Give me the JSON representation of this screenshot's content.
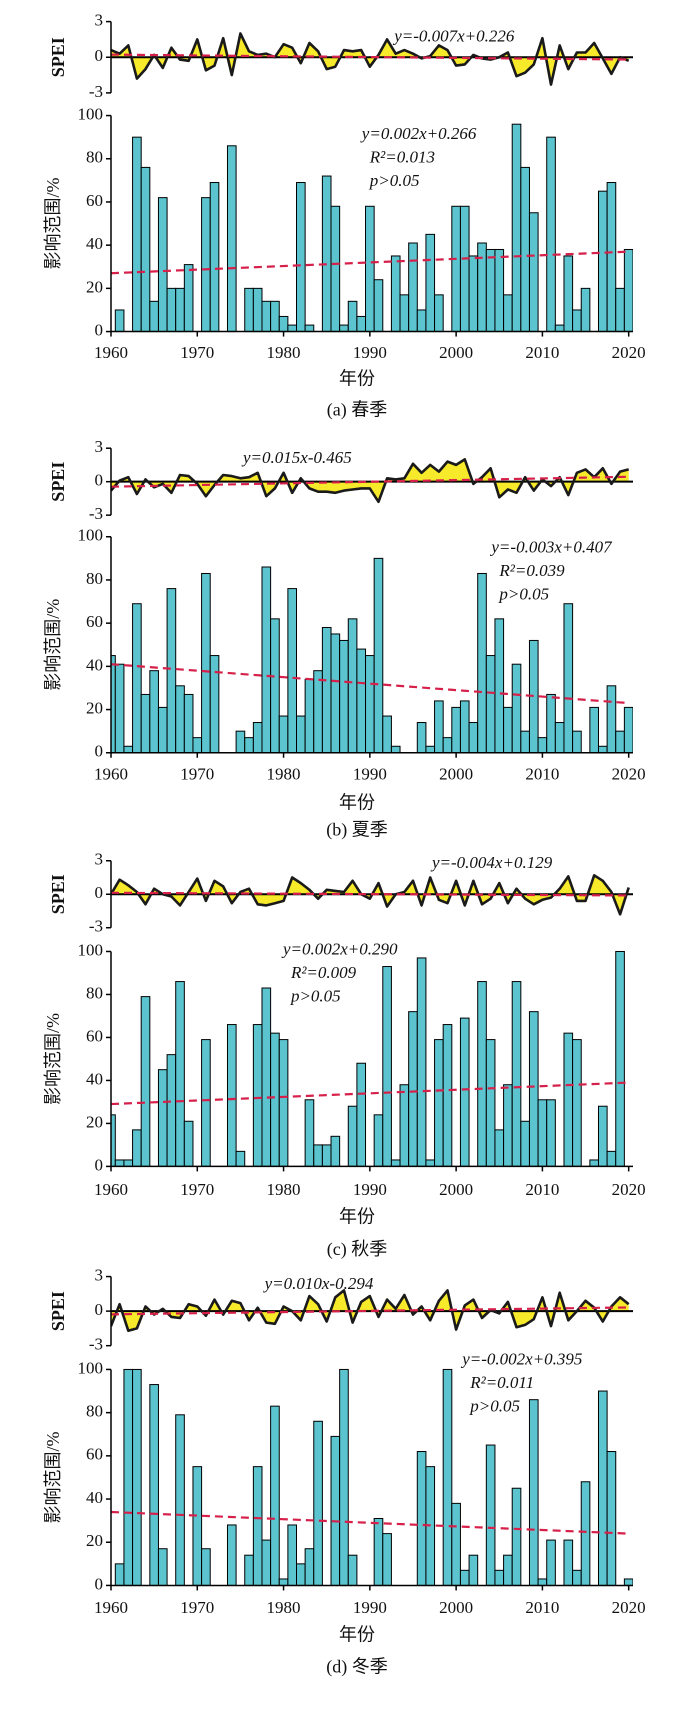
{
  "chart_data": [
    {
      "type": "bar",
      "x": [
        1960,
        1961,
        1962,
        1963,
        1964,
        1965,
        1966,
        1967,
        1968,
        1969,
        1970,
        1971,
        1972,
        1973,
        1974,
        1975,
        1976,
        1977,
        1978,
        1979,
        1980,
        1981,
        1982,
        1983,
        1984,
        1985,
        1986,
        1987,
        1988,
        1989,
        1990,
        1991,
        1992,
        1993,
        1994,
        1995,
        1996,
        1997,
        1998,
        1999,
        2000,
        2001,
        2002,
        2003,
        2004,
        2005,
        2006,
        2007,
        2008,
        2009,
        2010,
        2011,
        2012,
        2013,
        2014,
        2015,
        2016,
        2017,
        2018,
        2019,
        2020
      ],
      "values": [
        0,
        10,
        0,
        90,
        76,
        14,
        62,
        20,
        20,
        31,
        0,
        62,
        69,
        0,
        86,
        0,
        20,
        20,
        14,
        14,
        7,
        3,
        69,
        3,
        0,
        72,
        58,
        3,
        14,
        7,
        58,
        24,
        0,
        35,
        17,
        41,
        10,
        45,
        17,
        0,
        58,
        58,
        35,
        41,
        38,
        38,
        17,
        96,
        76,
        55,
        0,
        90,
        3,
        35,
        10,
        20,
        0,
        65,
        69,
        20,
        38
      ],
      "color": "#5bc4cf",
      "ylabel": "影响范围/%",
      "xlabel": "年份",
      "caption": "(a) 春季",
      "annotations": [
        "y=0.002x+0.266",
        "R²=0.013",
        "p>0.05"
      ],
      "trend": {
        "x": [
          1960,
          2020
        ],
        "values": [
          27,
          37
        ],
        "color": "#d6204a"
      },
      "xlim": [
        1960,
        2020.5
      ],
      "xticks": [
        1960,
        1970,
        1980,
        1990,
        2000,
        2010,
        2020
      ],
      "ylim": [
        0,
        100
      ],
      "yticks": [
        0,
        20,
        40,
        60,
        80,
        100
      ],
      "spei": {
        "type": "area",
        "values": [
          0.6,
          0.3,
          1.0,
          -1.8,
          -1.0,
          0.2,
          -0.9,
          0.8,
          -0.2,
          -0.3,
          1.5,
          -1.1,
          -0.7,
          1.6,
          -1.5,
          2.0,
          0.5,
          0.2,
          0.3,
          0.0,
          1.1,
          0.8,
          -0.5,
          1.2,
          0.5,
          -1.0,
          -0.8,
          0.6,
          0.5,
          0.6,
          -0.8,
          0.2,
          1.5,
          0.3,
          0.6,
          0.3,
          -0.1,
          0.1,
          1.0,
          0.6,
          -0.7,
          -0.6,
          0.2,
          -0.1,
          -0.2,
          0.0,
          0.4,
          -1.6,
          -1.3,
          -0.6,
          1.6,
          -2.3,
          1.0,
          -1.0,
          0.4,
          0.4,
          1.2,
          -0.1,
          -1.4,
          0.0,
          -0.3
        ],
        "color": "#f7ea2a",
        "line_color": "#1a1a1a",
        "ylabel": "SPEI",
        "annotation": "y=-0.007x+0.226",
        "trend": {
          "x": [
            1960,
            2020
          ],
          "values": [
            0.22,
            -0.19
          ],
          "color": "#d6204a"
        },
        "ylim": [
          -3,
          3
        ],
        "yticks": [
          -3,
          0,
          3
        ]
      }
    },
    {
      "type": "bar",
      "x": [
        1960,
        1961,
        1962,
        1963,
        1964,
        1965,
        1966,
        1967,
        1968,
        1969,
        1970,
        1971,
        1972,
        1973,
        1974,
        1975,
        1976,
        1977,
        1978,
        1979,
        1980,
        1981,
        1982,
        1983,
        1984,
        1985,
        1986,
        1987,
        1988,
        1989,
        1990,
        1991,
        1992,
        1993,
        1994,
        1995,
        1996,
        1997,
        1998,
        1999,
        2000,
        2001,
        2002,
        2003,
        2004,
        2005,
        2006,
        2007,
        2008,
        2009,
        2010,
        2011,
        2012,
        2013,
        2014,
        2015,
        2016,
        2017,
        2018,
        2019,
        2020
      ],
      "values": [
        45,
        41,
        3,
        69,
        27,
        38,
        21,
        76,
        31,
        27,
        7,
        83,
        45,
        0,
        0,
        10,
        7,
        14,
        86,
        62,
        17,
        76,
        17,
        34,
        38,
        58,
        55,
        52,
        62,
        48,
        45,
        90,
        17,
        3,
        0,
        0,
        14,
        3,
        24,
        7,
        21,
        24,
        14,
        83,
        45,
        62,
        21,
        41,
        10,
        52,
        7,
        27,
        14,
        69,
        10,
        0,
        21,
        3,
        31,
        10,
        21
      ],
      "color": "#5bc4cf",
      "ylabel": "影响范围/%",
      "xlabel": "年份",
      "caption": "(b) 夏季",
      "annotations": [
        "y=-0.003x+0.407",
        "R²=0.039",
        "p>0.05"
      ],
      "trend": {
        "x": [
          1960,
          2020
        ],
        "values": [
          41,
          23
        ],
        "color": "#d6204a"
      },
      "xlim": [
        1960,
        2020.5
      ],
      "xticks": [
        1960,
        1970,
        1980,
        1990,
        2000,
        2010,
        2020
      ],
      "ylim": [
        0,
        100
      ],
      "yticks": [
        0,
        20,
        40,
        60,
        80,
        100
      ],
      "spei": {
        "type": "area",
        "values": [
          -0.8,
          0.1,
          0.4,
          -1.1,
          0.2,
          -0.5,
          -0.2,
          -1.0,
          0.6,
          0.5,
          -0.2,
          -1.3,
          -0.3,
          0.6,
          0.5,
          0.3,
          0.4,
          0.8,
          -1.3,
          -0.6,
          0.8,
          -1.0,
          0.3,
          -0.6,
          -0.9,
          -0.9,
          -1.0,
          -0.8,
          -0.7,
          -0.6,
          -0.6,
          -1.8,
          0.3,
          0.2,
          0.3,
          1.6,
          0.8,
          1.5,
          0.9,
          1.8,
          1.5,
          2.0,
          -0.2,
          0.4,
          1.2,
          -1.4,
          -0.7,
          -1.0,
          0.4,
          -0.8,
          0.2,
          -0.4,
          0.4,
          -1.2,
          0.8,
          1.1,
          0.4,
          1.2,
          -0.2,
          0.9,
          1.1
        ],
        "color": "#f7ea2a",
        "line_color": "#1a1a1a",
        "ylabel": "SPEI",
        "annotation": "y=0.015x-0.465",
        "trend": {
          "x": [
            1960,
            2020
          ],
          "values": [
            -0.45,
            0.44
          ],
          "color": "#d6204a"
        },
        "ylim": [
          -3,
          3
        ],
        "yticks": [
          -3,
          0,
          3
        ]
      }
    },
    {
      "type": "bar",
      "x": [
        1960,
        1961,
        1962,
        1963,
        1964,
        1965,
        1966,
        1967,
        1968,
        1969,
        1970,
        1971,
        1972,
        1973,
        1974,
        1975,
        1976,
        1977,
        1978,
        1979,
        1980,
        1981,
        1982,
        1983,
        1984,
        1985,
        1986,
        1987,
        1988,
        1989,
        1990,
        1991,
        1992,
        1993,
        1994,
        1995,
        1996,
        1997,
        1998,
        1999,
        2000,
        2001,
        2002,
        2003,
        2004,
        2005,
        2006,
        2007,
        2008,
        2009,
        2010,
        2011,
        2012,
        2013,
        2014,
        2015,
        2016,
        2017,
        2018,
        2019,
        2020
      ],
      "values": [
        24,
        3,
        3,
        17,
        79,
        0,
        45,
        52,
        86,
        21,
        0,
        59,
        0,
        0,
        66,
        7,
        0,
        66,
        83,
        62,
        59,
        0,
        0,
        31,
        10,
        10,
        14,
        0,
        28,
        48,
        0,
        24,
        93,
        3,
        38,
        72,
        97,
        3,
        59,
        66,
        0,
        69,
        0,
        86,
        59,
        17,
        38,
        86,
        21,
        72,
        31,
        31,
        0,
        62,
        59,
        0,
        3,
        28,
        7,
        100,
        0
      ],
      "color": "#5bc4cf",
      "ylabel": "影响范围/%",
      "xlabel": "年份",
      "caption": "(c) 秋季",
      "annotations": [
        "y=0.002x+0.290",
        "R²=0.009",
        "p>0.05"
      ],
      "trend": {
        "x": [
          1960,
          2020
        ],
        "values": [
          29,
          39
        ],
        "color": "#d6204a"
      },
      "xlim": [
        1960,
        2020.5
      ],
      "xticks": [
        1960,
        1970,
        1980,
        1990,
        2000,
        2010,
        2020
      ],
      "ylim": [
        0,
        100
      ],
      "yticks": [
        0,
        20,
        40,
        60,
        80,
        100
      ],
      "spei": {
        "type": "area",
        "values": [
          0.0,
          1.3,
          0.8,
          0.2,
          -0.9,
          0.5,
          0.0,
          -0.2,
          -1.0,
          0.2,
          1.4,
          -0.6,
          1.2,
          0.7,
          -0.8,
          0.2,
          0.5,
          -0.9,
          -1.0,
          -0.8,
          -0.6,
          1.5,
          1.0,
          0.4,
          -0.4,
          0.4,
          0.3,
          0.2,
          1.2,
          0.0,
          -0.4,
          1.0,
          -1.1,
          0.0,
          0.2,
          1.2,
          -1.0,
          1.5,
          -0.5,
          -0.8,
          1.2,
          -1.0,
          1.2,
          -0.9,
          -0.4,
          1.0,
          -0.8,
          0.5,
          -0.4,
          -0.9,
          -0.5,
          -0.3,
          0.5,
          1.6,
          -0.6,
          -0.6,
          1.7,
          1.2,
          0.2,
          -1.8,
          0.6
        ],
        "color": "#f7ea2a",
        "line_color": "#1a1a1a",
        "ylabel": "SPEI",
        "annotation": "y=-0.004x+0.129",
        "trend": {
          "x": [
            1960,
            2020
          ],
          "values": [
            0.13,
            -0.11
          ],
          "color": "#d6204a"
        },
        "ylim": [
          -3,
          3
        ],
        "yticks": [
          -3,
          0,
          3
        ]
      }
    },
    {
      "type": "bar",
      "x": [
        1960,
        1961,
        1962,
        1963,
        1964,
        1965,
        1966,
        1967,
        1968,
        1969,
        1970,
        1971,
        1972,
        1973,
        1974,
        1975,
        1976,
        1977,
        1978,
        1979,
        1980,
        1981,
        1982,
        1983,
        1984,
        1985,
        1986,
        1987,
        1988,
        1989,
        1990,
        1991,
        1992,
        1993,
        1994,
        1995,
        1996,
        1997,
        1998,
        1999,
        2000,
        2001,
        2002,
        2003,
        2004,
        2005,
        2006,
        2007,
        2008,
        2009,
        2010,
        2011,
        2012,
        2013,
        2014,
        2015,
        2016,
        2017,
        2018,
        2019,
        2020
      ],
      "values": [
        0,
        10,
        100,
        100,
        0,
        93,
        17,
        0,
        79,
        0,
        55,
        17,
        0,
        0,
        28,
        0,
        14,
        55,
        21,
        83,
        3,
        28,
        10,
        17,
        76,
        0,
        69,
        100,
        14,
        0,
        0,
        31,
        24,
        0,
        0,
        0,
        62,
        55,
        0,
        100,
        38,
        7,
        14,
        0,
        65,
        7,
        14,
        45,
        0,
        86,
        3,
        21,
        0,
        21,
        7,
        48,
        0,
        90,
        62,
        0,
        3
      ],
      "color": "#5bc4cf",
      "ylabel": "影响范围/%",
      "xlabel": "年份",
      "caption": "(d) 冬季",
      "annotations": [
        "y=-0.002x+0.395",
        "R²=0.011",
        "p>0.05"
      ],
      "trend": {
        "x": [
          1960,
          2020
        ],
        "values": [
          34,
          24
        ],
        "color": "#d6204a"
      },
      "xlim": [
        1960,
        2020.5
      ],
      "xticks": [
        1960,
        1970,
        1980,
        1990,
        2000,
        2010,
        2020
      ],
      "ylim": [
        0,
        100
      ],
      "yticks": [
        0,
        20,
        40,
        60,
        80,
        100
      ],
      "spei": {
        "type": "area",
        "values": [
          -1.3,
          0.6,
          -1.7,
          -1.5,
          0.4,
          -0.3,
          0.2,
          -0.5,
          -0.6,
          0.6,
          0.4,
          -0.4,
          1.0,
          -0.3,
          0.9,
          0.7,
          -0.8,
          0.3,
          -1.0,
          -1.1,
          0.4,
          0.0,
          -0.8,
          1.3,
          0.6,
          -0.9,
          1.2,
          1.8,
          -1.0,
          0.8,
          1.3,
          -0.5,
          1.0,
          0.2,
          1.4,
          -0.3,
          0.4,
          -0.8,
          0.9,
          1.8,
          -1.6,
          0.5,
          1.0,
          -0.6,
          0.1,
          -0.2,
          0.8,
          -1.4,
          -1.2,
          -0.7,
          1.2,
          -1.3,
          1.6,
          -0.8,
          0.0,
          0.9,
          0.3,
          -0.9,
          0.4,
          1.2,
          0.6
        ],
        "color": "#f7ea2a",
        "line_color": "#1a1a1a",
        "ylabel": "SPEI",
        "annotation": "y=0.010x-0.294",
        "trend": {
          "x": [
            1960,
            2020
          ],
          "values": [
            -0.28,
            0.32
          ],
          "color": "#d6204a"
        },
        "ylim": [
          -3,
          3
        ],
        "yticks": [
          -3,
          0,
          3
        ]
      }
    }
  ]
}
